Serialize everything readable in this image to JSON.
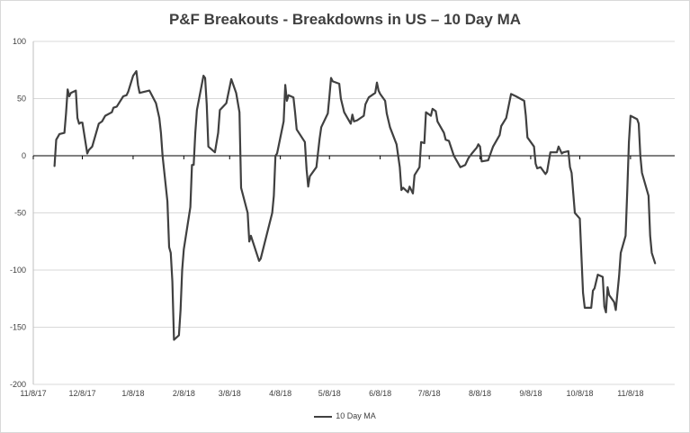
{
  "chart_data": {
    "type": "line",
    "title": "P&F Breakouts - Breakdowns in US – 10 Day MA",
    "xlabel": "",
    "ylabel": "",
    "ylim": [
      -200,
      100
    ],
    "yticks": [
      100,
      50,
      0,
      -50,
      -100,
      -150,
      -200
    ],
    "xlim": [
      "2017-11-08",
      "2018-12-05"
    ],
    "xticks": [
      "11/8/17",
      "12/8/17",
      "1/8/18",
      "2/8/18",
      "3/8/18",
      "4/8/18",
      "5/8/18",
      "6/8/18",
      "7/8/18",
      "8/8/18",
      "9/8/18",
      "10/8/18",
      "11/8/18"
    ],
    "xtick_dates": [
      "2017-11-08",
      "2017-12-08",
      "2018-01-08",
      "2018-02-08",
      "2018-03-08",
      "2018-04-08",
      "2018-05-08",
      "2018-06-08",
      "2018-07-08",
      "2018-08-08",
      "2018-09-08",
      "2018-10-08",
      "2018-11-08"
    ],
    "grid": "horizontal",
    "legend_position": "bottom",
    "line_color": "#404040",
    "series": [
      {
        "name": "10 Day MA",
        "points": [
          [
            "2017-11-21",
            -9
          ],
          [
            "2017-11-22",
            14
          ],
          [
            "2017-11-24",
            19
          ],
          [
            "2017-11-27",
            20
          ],
          [
            "2017-11-28",
            37
          ],
          [
            "2017-11-29",
            58
          ],
          [
            "2017-11-30",
            52
          ],
          [
            "2017-12-01",
            55
          ],
          [
            "2017-12-04",
            57
          ],
          [
            "2017-12-05",
            33
          ],
          [
            "2017-12-06",
            28
          ],
          [
            "2017-12-07",
            29
          ],
          [
            "2017-12-08",
            29
          ],
          [
            "2017-12-11",
            2
          ],
          [
            "2017-12-12",
            5
          ],
          [
            "2017-12-14",
            8
          ],
          [
            "2017-12-18",
            28
          ],
          [
            "2017-12-20",
            30
          ],
          [
            "2017-12-22",
            35
          ],
          [
            "2017-12-26",
            38
          ],
          [
            "2017-12-27",
            42
          ],
          [
            "2017-12-29",
            43
          ],
          [
            "2018-01-02",
            52
          ],
          [
            "2018-01-04",
            53
          ],
          [
            "2018-01-05",
            56
          ],
          [
            "2018-01-08",
            70
          ],
          [
            "2018-01-10",
            74
          ],
          [
            "2018-01-11",
            62
          ],
          [
            "2018-01-12",
            55
          ],
          [
            "2018-01-18",
            57
          ],
          [
            "2018-01-22",
            46
          ],
          [
            "2018-01-24",
            33
          ],
          [
            "2018-01-25",
            20
          ],
          [
            "2018-01-26",
            0
          ],
          [
            "2018-01-29",
            -40
          ],
          [
            "2018-01-30",
            -80
          ],
          [
            "2018-01-31",
            -85
          ],
          [
            "2018-02-01",
            -110
          ],
          [
            "2018-02-02",
            -161
          ],
          [
            "2018-02-05",
            -157
          ],
          [
            "2018-02-06",
            -135
          ],
          [
            "2018-02-07",
            -100
          ],
          [
            "2018-02-08",
            -82
          ],
          [
            "2018-02-12",
            -45
          ],
          [
            "2018-02-13",
            -8
          ],
          [
            "2018-02-14",
            -8
          ],
          [
            "2018-02-15",
            20
          ],
          [
            "2018-02-16",
            40
          ],
          [
            "2018-02-20",
            70
          ],
          [
            "2018-02-21",
            68
          ],
          [
            "2018-02-22",
            45
          ],
          [
            "2018-02-23",
            8
          ],
          [
            "2018-02-27",
            3
          ],
          [
            "2018-03-01",
            20
          ],
          [
            "2018-03-02",
            40
          ],
          [
            "2018-03-06",
            46
          ],
          [
            "2018-03-09",
            67
          ],
          [
            "2018-03-12",
            55
          ],
          [
            "2018-03-14",
            38
          ],
          [
            "2018-03-15",
            -28
          ],
          [
            "2018-03-19",
            -50
          ],
          [
            "2018-03-20",
            -75
          ],
          [
            "2018-03-21",
            -70
          ],
          [
            "2018-03-26",
            -92
          ],
          [
            "2018-03-27",
            -90
          ],
          [
            "2018-04-03",
            -50
          ],
          [
            "2018-04-04",
            -35
          ],
          [
            "2018-04-05",
            0
          ],
          [
            "2018-04-06",
            2
          ],
          [
            "2018-04-10",
            30
          ],
          [
            "2018-04-11",
            62
          ],
          [
            "2018-04-12",
            48
          ],
          [
            "2018-04-13",
            53
          ],
          [
            "2018-04-16",
            51
          ],
          [
            "2018-04-17",
            38
          ],
          [
            "2018-04-18",
            23
          ],
          [
            "2018-04-23",
            12
          ],
          [
            "2018-04-24",
            -12
          ],
          [
            "2018-04-25",
            -27
          ],
          [
            "2018-04-26",
            -18
          ],
          [
            "2018-04-30",
            -10
          ],
          [
            "2018-05-02",
            15
          ],
          [
            "2018-05-03",
            25
          ],
          [
            "2018-05-07",
            37
          ],
          [
            "2018-05-08",
            52
          ],
          [
            "2018-05-09",
            68
          ],
          [
            "2018-05-10",
            65
          ],
          [
            "2018-05-14",
            63
          ],
          [
            "2018-05-15",
            50
          ],
          [
            "2018-05-17",
            38
          ],
          [
            "2018-05-21",
            28
          ],
          [
            "2018-05-22",
            36
          ],
          [
            "2018-05-23",
            30
          ],
          [
            "2018-05-25",
            31
          ],
          [
            "2018-05-29",
            35
          ],
          [
            "2018-05-30",
            45
          ],
          [
            "2018-06-01",
            51
          ],
          [
            "2018-06-05",
            55
          ],
          [
            "2018-06-06",
            64
          ],
          [
            "2018-06-07",
            57
          ],
          [
            "2018-06-08",
            54
          ],
          [
            "2018-06-11",
            48
          ],
          [
            "2018-06-12",
            37
          ],
          [
            "2018-06-14",
            25
          ],
          [
            "2018-06-18",
            10
          ],
          [
            "2018-06-20",
            -10
          ],
          [
            "2018-06-21",
            -30
          ],
          [
            "2018-06-22",
            -28
          ],
          [
            "2018-06-25",
            -32
          ],
          [
            "2018-06-26",
            -27
          ],
          [
            "2018-06-28",
            -33
          ],
          [
            "2018-06-29",
            -17
          ],
          [
            "2018-07-02",
            -10
          ],
          [
            "2018-07-03",
            12
          ],
          [
            "2018-07-05",
            11
          ],
          [
            "2018-07-06",
            38
          ],
          [
            "2018-07-09",
            35
          ],
          [
            "2018-07-10",
            41
          ],
          [
            "2018-07-12",
            39
          ],
          [
            "2018-07-13",
            30
          ],
          [
            "2018-07-17",
            20
          ],
          [
            "2018-07-18",
            14
          ],
          [
            "2018-07-20",
            13
          ],
          [
            "2018-07-23",
            0
          ],
          [
            "2018-07-25",
            -5
          ],
          [
            "2018-07-27",
            -10
          ],
          [
            "2018-07-30",
            -8
          ],
          [
            "2018-08-01",
            -2
          ],
          [
            "2018-08-03",
            2
          ],
          [
            "2018-08-06",
            7
          ],
          [
            "2018-08-07",
            10
          ],
          [
            "2018-08-08",
            8
          ],
          [
            "2018-08-09",
            -5
          ],
          [
            "2018-08-13",
            -4
          ],
          [
            "2018-08-16",
            8
          ],
          [
            "2018-08-20",
            18
          ],
          [
            "2018-08-21",
            26
          ],
          [
            "2018-08-24",
            33
          ],
          [
            "2018-08-27",
            54
          ],
          [
            "2018-08-30",
            52
          ],
          [
            "2018-09-04",
            48
          ],
          [
            "2018-09-05",
            35
          ],
          [
            "2018-09-06",
            16
          ],
          [
            "2018-09-10",
            8
          ],
          [
            "2018-09-11",
            -7
          ],
          [
            "2018-09-12",
            -11
          ],
          [
            "2018-09-14",
            -10
          ],
          [
            "2018-09-17",
            -16
          ],
          [
            "2018-09-18",
            -14
          ],
          [
            "2018-09-20",
            3
          ],
          [
            "2018-09-24",
            3
          ],
          [
            "2018-09-25",
            8
          ],
          [
            "2018-09-27",
            2
          ],
          [
            "2018-09-28",
            3
          ],
          [
            "2018-10-01",
            4
          ],
          [
            "2018-10-02",
            -10
          ],
          [
            "2018-10-03",
            -15
          ],
          [
            "2018-10-05",
            -50
          ],
          [
            "2018-10-08",
            -55
          ],
          [
            "2018-10-10",
            -120
          ],
          [
            "2018-10-11",
            -133
          ],
          [
            "2018-10-15",
            -133
          ],
          [
            "2018-10-16",
            -118
          ],
          [
            "2018-10-17",
            -116
          ],
          [
            "2018-10-19",
            -104
          ],
          [
            "2018-10-22",
            -106
          ],
          [
            "2018-10-23",
            -132
          ],
          [
            "2018-10-24",
            -137
          ],
          [
            "2018-10-25",
            -115
          ],
          [
            "2018-10-26",
            -122
          ],
          [
            "2018-10-29",
            -128
          ],
          [
            "2018-10-30",
            -135
          ],
          [
            "2018-11-01",
            -105
          ],
          [
            "2018-11-02",
            -85
          ],
          [
            "2018-11-05",
            -70
          ],
          [
            "2018-11-06",
            -30
          ],
          [
            "2018-11-07",
            12
          ],
          [
            "2018-11-08",
            35
          ],
          [
            "2018-11-12",
            32
          ],
          [
            "2018-11-13",
            28
          ],
          [
            "2018-11-14",
            0
          ],
          [
            "2018-11-15",
            -15
          ],
          [
            "2018-11-19",
            -35
          ],
          [
            "2018-11-20",
            -70
          ],
          [
            "2018-11-21",
            -85
          ],
          [
            "2018-11-23",
            -94
          ]
        ]
      }
    ]
  }
}
